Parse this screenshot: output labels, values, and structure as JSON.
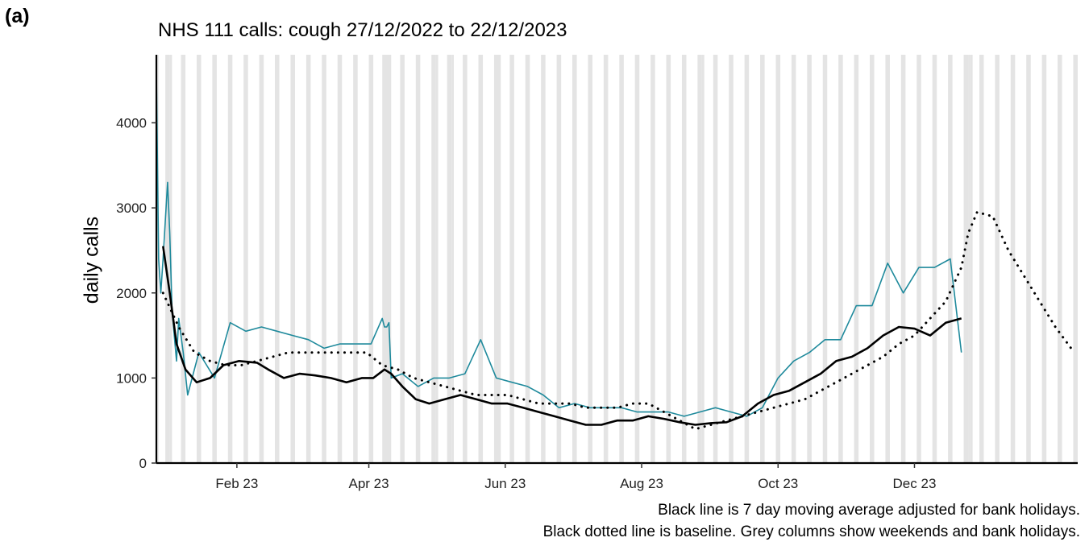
{
  "panel": {
    "tag": "(a)"
  },
  "chart_data": {
    "type": "line",
    "title": "NHS 111 calls: cough 27/12/2022 to 22/12/2023",
    "ylabel": "daily calls",
    "xlabel": "",
    "x_start_date": "2022-12-27",
    "x_range": [
      "2022-12-27",
      "2024-02-12"
    ],
    "ylim": [
      0,
      4800
    ],
    "y_ticks": [
      0,
      1000,
      2000,
      3000,
      4000
    ],
    "x_ticks": [
      {
        "date": "2023-02-01",
        "label": "Feb 23"
      },
      {
        "date": "2023-04-01",
        "label": "Apr 23"
      },
      {
        "date": "2023-06-01",
        "label": "Jun 23"
      },
      {
        "date": "2023-08-01",
        "label": "Aug 23"
      },
      {
        "date": "2023-10-01",
        "label": "Oct 23"
      },
      {
        "date": "2023-12-01",
        "label": "Dec 23"
      }
    ],
    "grid": false,
    "bank_holidays": [
      "2022-12-27",
      "2023-01-02",
      "2023-04-07",
      "2023-04-10",
      "2023-05-01",
      "2023-05-08",
      "2023-05-29",
      "2023-08-28",
      "2023-12-25",
      "2023-12-26"
    ],
    "series": [
      {
        "style": "teal",
        "color": "#1f8a9c",
        "x": [
          "2022-12-27",
          "2022-12-28",
          "2022-12-29",
          "2022-12-30",
          "2023-01-01",
          "2023-01-02",
          "2023-01-03",
          "2023-01-05",
          "2023-01-06",
          "2023-01-08",
          "2023-01-10",
          "2023-01-15",
          "2023-01-22",
          "2023-01-29",
          "2023-02-05",
          "2023-02-12",
          "2023-02-19",
          "2023-02-26",
          "2023-03-05",
          "2023-03-12",
          "2023-03-19",
          "2023-03-26",
          "2023-04-02",
          "2023-04-07",
          "2023-04-08",
          "2023-04-09",
          "2023-04-10",
          "2023-04-11",
          "2023-04-16",
          "2023-04-23",
          "2023-04-30",
          "2023-05-07",
          "2023-05-14",
          "2023-05-21",
          "2023-05-28",
          "2023-06-04",
          "2023-06-11",
          "2023-06-18",
          "2023-06-25",
          "2023-07-02",
          "2023-07-09",
          "2023-07-16",
          "2023-07-23",
          "2023-07-30",
          "2023-08-06",
          "2023-08-13",
          "2023-08-20",
          "2023-08-27",
          "2023-09-03",
          "2023-09-10",
          "2023-09-17",
          "2023-09-24",
          "2023-10-01",
          "2023-10-08",
          "2023-10-15",
          "2023-10-22",
          "2023-10-29",
          "2023-11-05",
          "2023-11-12",
          "2023-11-19",
          "2023-11-26",
          "2023-12-03",
          "2023-12-10",
          "2023-12-17",
          "2023-12-22"
        ],
        "values": [
          4600,
          2400,
          2000,
          2400,
          3300,
          2700,
          1800,
          1200,
          1700,
          1300,
          800,
          1300,
          1000,
          1650,
          1550,
          1600,
          1550,
          1500,
          1450,
          1350,
          1400,
          1400,
          1400,
          1700,
          1600,
          1600,
          1650,
          1000,
          1050,
          900,
          1000,
          1000,
          1050,
          1450,
          1000,
          950,
          900,
          800,
          650,
          700,
          650,
          650,
          650,
          600,
          600,
          600,
          550,
          600,
          650,
          600,
          550,
          650,
          1000,
          1200,
          1300,
          1450,
          1450,
          1850,
          1850,
          2350,
          2000,
          2300,
          2300,
          2400,
          1300
        ]
      },
      {
        "style": "solid",
        "name": "Black line is 7 day moving average adjusted for bank holidays.",
        "color": "#000000",
        "x": [
          "2022-12-30",
          "2023-01-02",
          "2023-01-05",
          "2023-01-09",
          "2023-01-14",
          "2023-01-20",
          "2023-01-26",
          "2023-02-02",
          "2023-02-10",
          "2023-02-15",
          "2023-02-22",
          "2023-03-01",
          "2023-03-08",
          "2023-03-15",
          "2023-03-22",
          "2023-03-29",
          "2023-04-03",
          "2023-04-08",
          "2023-04-11",
          "2023-04-16",
          "2023-04-22",
          "2023-04-28",
          "2023-05-05",
          "2023-05-12",
          "2023-05-19",
          "2023-05-26",
          "2023-06-02",
          "2023-06-09",
          "2023-06-16",
          "2023-06-23",
          "2023-06-30",
          "2023-07-07",
          "2023-07-14",
          "2023-07-21",
          "2023-07-28",
          "2023-08-04",
          "2023-08-11",
          "2023-08-18",
          "2023-08-25",
          "2023-09-01",
          "2023-09-08",
          "2023-09-15",
          "2023-09-22",
          "2023-09-29",
          "2023-10-06",
          "2023-10-13",
          "2023-10-20",
          "2023-10-27",
          "2023-11-03",
          "2023-11-10",
          "2023-11-17",
          "2023-11-24",
          "2023-12-01",
          "2023-12-08",
          "2023-12-15",
          "2023-12-22"
        ],
        "values": [
          2550,
          2000,
          1400,
          1100,
          950,
          1000,
          1150,
          1200,
          1180,
          1100,
          1000,
          1050,
          1030,
          1000,
          950,
          1000,
          1000,
          1100,
          1050,
          900,
          750,
          700,
          750,
          800,
          750,
          700,
          700,
          650,
          600,
          550,
          500,
          450,
          450,
          500,
          500,
          550,
          520,
          480,
          450,
          470,
          480,
          550,
          700,
          800,
          850,
          950,
          1050,
          1200,
          1250,
          1350,
          1500,
          1600,
          1580,
          1500,
          1650,
          1700
        ]
      },
      {
        "style": "dotted",
        "name": "Black dotted line is baseline. Grey columns show weekends and bank holidays.",
        "color": "#000000",
        "x": [
          "2022-12-30",
          "2023-01-06",
          "2023-01-13",
          "2023-01-20",
          "2023-01-27",
          "2023-02-03",
          "2023-02-10",
          "2023-02-17",
          "2023-02-24",
          "2023-03-03",
          "2023-03-10",
          "2023-03-17",
          "2023-03-24",
          "2023-03-31",
          "2023-04-07",
          "2023-04-14",
          "2023-04-21",
          "2023-04-28",
          "2023-05-05",
          "2023-05-12",
          "2023-05-19",
          "2023-05-26",
          "2023-06-02",
          "2023-06-09",
          "2023-06-16",
          "2023-06-23",
          "2023-06-30",
          "2023-07-07",
          "2023-07-14",
          "2023-07-21",
          "2023-07-28",
          "2023-08-04",
          "2023-08-11",
          "2023-08-18",
          "2023-08-25",
          "2023-09-01",
          "2023-09-08",
          "2023-09-15",
          "2023-09-22",
          "2023-09-29",
          "2023-10-06",
          "2023-10-13",
          "2023-10-20",
          "2023-10-27",
          "2023-11-03",
          "2023-11-10",
          "2023-11-17",
          "2023-11-24",
          "2023-12-01",
          "2023-12-08",
          "2023-12-15",
          "2023-12-22",
          "2023-12-25",
          "2023-12-29",
          "2024-01-05",
          "2024-01-12",
          "2024-01-19",
          "2024-01-26",
          "2024-02-02",
          "2024-02-09"
        ],
        "values": [
          2000,
          1600,
          1300,
          1200,
          1150,
          1150,
          1200,
          1250,
          1300,
          1300,
          1300,
          1300,
          1300,
          1300,
          1150,
          1100,
          1000,
          950,
          900,
          850,
          800,
          800,
          800,
          750,
          700,
          700,
          700,
          650,
          650,
          650,
          700,
          700,
          600,
          500,
          400,
          450,
          500,
          550,
          600,
          650,
          700,
          750,
          850,
          950,
          1050,
          1150,
          1250,
          1400,
          1500,
          1700,
          1900,
          2300,
          2700,
          2950,
          2900,
          2500,
          2200,
          1900,
          1600,
          1350
        ]
      }
    ]
  },
  "captions": {
    "line1": "Black line is 7 day moving average adjusted for bank holidays.",
    "line2": "Black dotted line is baseline. Grey columns show weekends and bank holidays."
  }
}
